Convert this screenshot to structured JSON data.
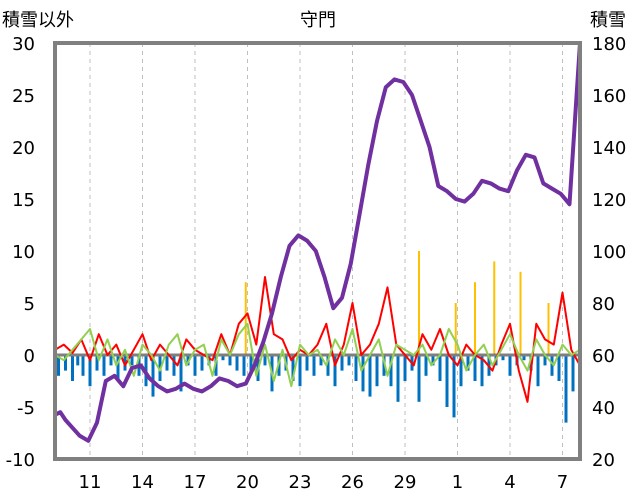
{
  "chart_data": {
    "type": "line",
    "title": "守門",
    "left_axis_label": "積雪以外",
    "right_axis_label": "積雪",
    "left_ylim": [
      -10,
      30
    ],
    "left_ticks": [
      30,
      25,
      20,
      15,
      10,
      5,
      0,
      -5,
      -10
    ],
    "right_ylim": [
      20,
      180
    ],
    "right_ticks": [
      180,
      160,
      140,
      120,
      100,
      80,
      60,
      40,
      20
    ],
    "x_range": [
      0,
      30
    ],
    "x_ticks": [
      {
        "label": "11",
        "x": 2
      },
      {
        "label": "14",
        "x": 5
      },
      {
        "label": "17",
        "x": 8
      },
      {
        "label": "20",
        "x": 11
      },
      {
        "label": "23",
        "x": 14
      },
      {
        "label": "26",
        "x": 17
      },
      {
        "label": "29",
        "x": 20
      },
      {
        "label": "1",
        "x": 23
      },
      {
        "label": "4",
        "x": 26
      },
      {
        "label": "7",
        "x": 29
      }
    ],
    "grid": "vertical dashed",
    "colors": {
      "snow_depth": "#7030a0",
      "temperature": "#ff0000",
      "precip_negative": "#0070c0",
      "precip_positive": "#ffc000",
      "green_series": "#92d050",
      "axis_line": "#808080"
    },
    "series": [
      {
        "axis": "right",
        "color": "#7030a0",
        "x": [
          0,
          0.3,
          0.6,
          1.0,
          1.4,
          1.9,
          2.4,
          2.9,
          3.4,
          3.9,
          4.4,
          4.9,
          5.4,
          5.9,
          6.4,
          6.9,
          7.4,
          7.9,
          8.4,
          8.9,
          9.4,
          9.9,
          10.4,
          10.9,
          11.4,
          11.9,
          12.4,
          12.9,
          13.4,
          13.9,
          14.4,
          14.9,
          15.4,
          15.9,
          16.4,
          16.9,
          17.4,
          17.9,
          18.4,
          18.9,
          19.4,
          19.9,
          20.4,
          20.9,
          21.4,
          21.9,
          22.4,
          22.9,
          23.4,
          23.9,
          24.4,
          24.9,
          25.4,
          25.9,
          26.4,
          26.9,
          27.4,
          27.9,
          28.4,
          28.9,
          29.4,
          29.9,
          30.0
        ],
        "values": [
          37,
          38,
          35,
          32,
          29,
          27,
          34,
          50,
          52,
          48,
          55,
          56,
          51,
          48,
          46,
          47,
          49,
          47,
          46,
          48,
          51,
          50,
          48,
          49,
          56,
          65,
          76,
          90,
          102,
          106,
          104,
          100,
          90,
          78,
          82,
          95,
          114,
          133,
          150,
          163,
          166,
          165,
          160,
          150,
          140,
          125,
          123,
          120,
          119,
          122,
          127,
          126,
          124,
          123,
          131,
          137,
          136,
          126,
          124,
          122,
          118,
          170,
          180
        ]
      },
      {
        "axis": "left",
        "color": "#ff0000",
        "x": [
          0,
          0.5,
          1.0,
          1.5,
          2.0,
          2.5,
          3.0,
          3.5,
          4.0,
          4.5,
          5.0,
          5.5,
          6.0,
          6.5,
          7.0,
          7.5,
          8.0,
          8.5,
          9.0,
          9.5,
          10.0,
          10.5,
          11.0,
          11.5,
          12.0,
          12.5,
          13.0,
          13.5,
          14.0,
          14.5,
          15.0,
          15.5,
          16.0,
          16.5,
          17.0,
          17.5,
          18.0,
          18.5,
          19.0,
          19.5,
          20.0,
          20.5,
          21.0,
          21.5,
          22.0,
          22.5,
          23.0,
          23.5,
          24.0,
          24.5,
          25.0,
          25.5,
          26.0,
          26.5,
          27.0,
          27.5,
          28.0,
          28.5,
          29.0,
          29.5,
          30.0
        ],
        "values": [
          0.5,
          1.0,
          0.2,
          1.5,
          -0.5,
          2.0,
          0.0,
          1.0,
          -1.0,
          0.5,
          2.0,
          -0.5,
          1.0,
          0.0,
          -1.0,
          1.5,
          0.5,
          0.0,
          -0.5,
          2.0,
          0.0,
          3.0,
          4.0,
          1.0,
          7.5,
          2.0,
          1.5,
          -0.5,
          0.5,
          0.0,
          1.0,
          3.0,
          -1.0,
          1.0,
          5.0,
          0.0,
          1.0,
          3.0,
          6.5,
          1.0,
          0.0,
          -1.0,
          2.0,
          0.5,
          2.5,
          0.0,
          -1.0,
          1.0,
          0.0,
          -0.5,
          -1.5,
          1.0,
          3.0,
          -1.5,
          -4.5,
          3.0,
          1.5,
          1.0,
          6.0,
          0.5,
          -1.0
        ]
      },
      {
        "axis": "left",
        "color": "#92d050",
        "x": [
          0,
          0.5,
          1.0,
          1.5,
          2.0,
          2.5,
          3.0,
          3.5,
          4.0,
          4.5,
          5.0,
          5.5,
          6.0,
          6.5,
          7.0,
          7.5,
          8.0,
          8.5,
          9.0,
          9.5,
          10.0,
          10.5,
          11.0,
          11.5,
          12.0,
          12.5,
          13.0,
          13.5,
          14.0,
          14.5,
          15.0,
          15.5,
          16.0,
          16.5,
          17.0,
          17.5,
          18.0,
          18.5,
          19.0,
          19.5,
          20.0,
          20.5,
          21.0,
          21.5,
          22.0,
          22.5,
          23.0,
          23.5,
          24.0,
          24.5,
          25.0,
          25.5,
          26.0,
          26.5,
          27.0,
          27.5,
          28.0,
          28.5,
          29.0,
          29.5,
          30.0
        ],
        "values": [
          0.0,
          -0.5,
          0.5,
          1.5,
          2.5,
          -0.5,
          1.5,
          -1.0,
          0.5,
          -2.0,
          1.0,
          0.0,
          -1.5,
          1.0,
          2.0,
          -1.0,
          0.5,
          1.0,
          -2.0,
          1.5,
          0.0,
          2.0,
          3.0,
          -2.0,
          1.0,
          -2.5,
          0.5,
          -3.0,
          1.0,
          0.0,
          0.5,
          -1.0,
          1.5,
          0.0,
          2.5,
          -1.5,
          0.0,
          1.5,
          -2.0,
          1.0,
          0.5,
          0.0,
          1.0,
          -1.0,
          0.0,
          2.5,
          1.0,
          -1.5,
          0.0,
          1.0,
          -1.0,
          0.5,
          2.0,
          0.0,
          -1.5,
          1.5,
          0.0,
          -1.0,
          1.0,
          0.0,
          0.5
        ]
      }
    ],
    "bars_negative": {
      "axis": "left",
      "color": "#0070c0",
      "x": [
        0.2,
        0.6,
        1.0,
        1.3,
        1.6,
        2.0,
        2.4,
        2.8,
        3.2,
        3.6,
        4.0,
        4.4,
        4.8,
        5.2,
        5.6,
        6.0,
        6.4,
        6.8,
        7.2,
        7.6,
        8.0,
        8.4,
        8.8,
        9.2,
        9.6,
        10.0,
        10.4,
        10.8,
        11.2,
        11.6,
        12.0,
        12.4,
        12.8,
        13.2,
        13.6,
        14.0,
        14.4,
        14.8,
        15.2,
        15.6,
        16.0,
        16.4,
        16.8,
        17.2,
        17.6,
        18.0,
        18.4,
        18.8,
        19.2,
        19.6,
        20.0,
        20.4,
        20.8,
        21.2,
        21.6,
        22.0,
        22.4,
        22.8,
        23.2,
        23.6,
        24.0,
        24.4,
        24.8,
        25.2,
        25.6,
        26.0,
        26.4,
        26.8,
        27.2,
        27.6,
        28.0,
        28.4,
        28.8,
        29.2,
        29.6,
        30.0
      ],
      "values": [
        -2.0,
        -1.5,
        -2.5,
        -1.0,
        -2.0,
        -3.0,
        -1.5,
        -2.0,
        -1.0,
        -2.5,
        -1.5,
        -1.0,
        -2.0,
        -3.0,
        -4.0,
        -2.5,
        -1.5,
        -2.0,
        -3.5,
        -1.0,
        -2.0,
        -1.5,
        -1.0,
        -2.0,
        -0.5,
        -1.0,
        -1.5,
        -2.0,
        -1.5,
        -2.5,
        -1.0,
        -3.5,
        -2.0,
        -1.5,
        -2.5,
        -3.0,
        -1.5,
        -2.0,
        -1.0,
        -2.0,
        -3.0,
        -1.5,
        -1.0,
        -2.5,
        -3.5,
        -4.0,
        -3.0,
        -2.0,
        -3.0,
        -4.5,
        -2.5,
        -1.5,
        -4.5,
        -2.0,
        -1.0,
        -2.5,
        -5.0,
        -6.0,
        -3.0,
        -1.5,
        -2.5,
        -3.0,
        -2.0,
        -1.0,
        -0.5,
        -2.0,
        -1.0,
        -0.5,
        -1.5,
        -3.0,
        -1.0,
        -2.0,
        -2.5,
        -6.5,
        -3.5,
        -2.0
      ]
    },
    "bars_positive": {
      "axis": "left",
      "color": "#ffc000",
      "x": [
        10.9,
        20.8,
        22.9,
        24.0,
        25.1,
        26.6,
        28.2
      ],
      "values": [
        7.0,
        10.0,
        5.0,
        7.0,
        9.0,
        8.0,
        5.0
      ]
    }
  }
}
